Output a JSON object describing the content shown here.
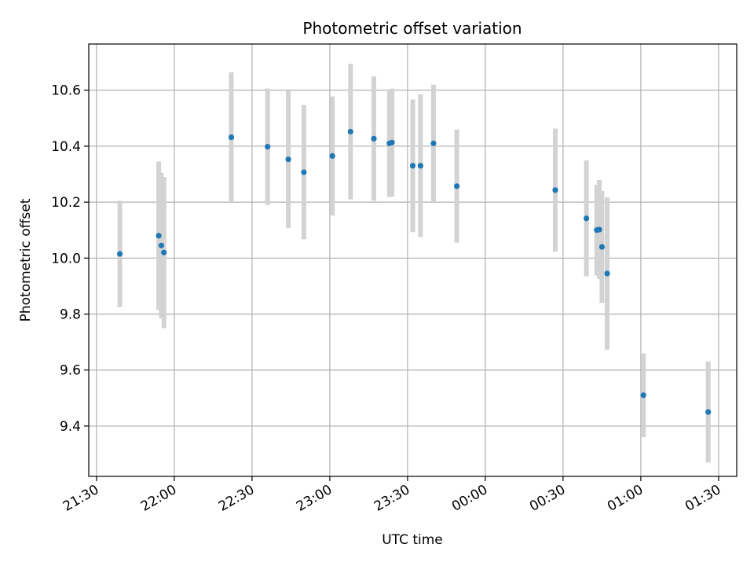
{
  "chart_data": {
    "type": "scatter",
    "title": "Photometric offset variation",
    "xlabel": "UTC time",
    "ylabel": "Photometric offset",
    "grid": true,
    "x_range": [
      "21:27",
      "01:37"
    ],
    "ylim": [
      9.22,
      10.765
    ],
    "x_ticks": [
      {
        "time": "21:30",
        "label": "21:30"
      },
      {
        "time": "22:00",
        "label": "22:00"
      },
      {
        "time": "22:30",
        "label": "22:30"
      },
      {
        "time": "23:00",
        "label": "23:00"
      },
      {
        "time": "23:30",
        "label": "23:30"
      },
      {
        "time": "00:00",
        "label": "00:00"
      },
      {
        "time": "00:30",
        "label": "00:30"
      },
      {
        "time": "01:00",
        "label": "01:00"
      },
      {
        "time": "01:30",
        "label": "01:30"
      }
    ],
    "y_ticks": [
      {
        "value": 9.4,
        "label": "9.4"
      },
      {
        "value": 9.6,
        "label": "9.6"
      },
      {
        "value": 9.8,
        "label": "9.8"
      },
      {
        "value": 10.0,
        "label": "10.0"
      },
      {
        "value": 10.2,
        "label": "10.2"
      },
      {
        "value": 10.4,
        "label": "10.4"
      },
      {
        "value": 10.6,
        "label": "10.6"
      }
    ],
    "points": [
      {
        "time": "21:39",
        "y": 10.015,
        "err": 0.19
      },
      {
        "time": "21:54",
        "y": 10.08,
        "err": 0.265
      },
      {
        "time": "21:55",
        "y": 10.045,
        "err": 0.26
      },
      {
        "time": "21:56",
        "y": 10.02,
        "err": 0.27
      },
      {
        "time": "22:22",
        "y": 10.432,
        "err": 0.232
      },
      {
        "time": "22:36",
        "y": 10.398,
        "err": 0.208
      },
      {
        "time": "22:44",
        "y": 10.353,
        "err": 0.245
      },
      {
        "time": "22:50",
        "y": 10.307,
        "err": 0.24
      },
      {
        "time": "23:01",
        "y": 10.365,
        "err": 0.213
      },
      {
        "time": "23:08",
        "y": 10.452,
        "err": 0.242
      },
      {
        "time": "23:17",
        "y": 10.427,
        "err": 0.222
      },
      {
        "time": "23:23",
        "y": 10.41,
        "err": 0.192
      },
      {
        "time": "23:24",
        "y": 10.413,
        "err": 0.193
      },
      {
        "time": "23:32",
        "y": 10.33,
        "err": 0.237
      },
      {
        "time": "23:35",
        "y": 10.33,
        "err": 0.255
      },
      {
        "time": "23:40",
        "y": 10.41,
        "err": 0.21
      },
      {
        "time": "23:49",
        "y": 10.257,
        "err": 0.202
      },
      {
        "time": "00:27",
        "y": 10.243,
        "err": 0.22
      },
      {
        "time": "00:39",
        "y": 10.142,
        "err": 0.207
      },
      {
        "time": "00:43",
        "y": 10.1,
        "err": 0.162
      },
      {
        "time": "00:44",
        "y": 10.102,
        "err": 0.177
      },
      {
        "time": "00:45",
        "y": 10.04,
        "err": 0.2
      },
      {
        "time": "00:47",
        "y": 9.945,
        "err": 0.272
      },
      {
        "time": "01:01",
        "y": 9.51,
        "err": 0.15
      },
      {
        "time": "01:26",
        "y": 9.45,
        "err": 0.18
      }
    ],
    "colors": {
      "marker": "#1f77b4",
      "errorbar": "#d3d3d3",
      "grid": "#b0b0b0",
      "axis": "#000000"
    }
  }
}
